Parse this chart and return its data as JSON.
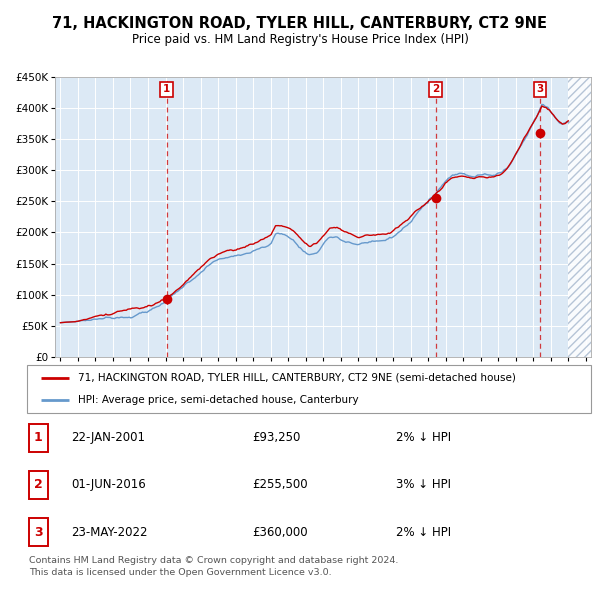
{
  "title": "71, HACKINGTON ROAD, TYLER HILL, CANTERBURY, CT2 9NE",
  "subtitle": "Price paid vs. HM Land Registry's House Price Index (HPI)",
  "title_fontsize": 10.5,
  "subtitle_fontsize": 8.5,
  "bg_color": "#dce9f5",
  "plot_bg_color": "#dce9f5",
  "hatch_color": "#b0c8e0",
  "ylim": [
    0,
    450000
  ],
  "yticks": [
    0,
    50000,
    100000,
    150000,
    200000,
    250000,
    300000,
    350000,
    400000,
    450000
  ],
  "ytick_labels": [
    "£0",
    "£50K",
    "£100K",
    "£150K",
    "£200K",
    "£250K",
    "£300K",
    "£350K",
    "£400K",
    "£450K"
  ],
  "xlim_start": 1994.7,
  "xlim_end": 2025.3,
  "red_line_label": "71, HACKINGTON ROAD, TYLER HILL, CANTERBURY, CT2 9NE (semi-detached house)",
  "blue_line_label": "HPI: Average price, semi-detached house, Canterbury",
  "sale_points": [
    {
      "num": 1,
      "date": "22-JAN-2001",
      "price": 93250,
      "year": 2001.06,
      "pct": "2%",
      "dir": "↓"
    },
    {
      "num": 2,
      "date": "01-JUN-2016",
      "price": 255500,
      "year": 2016.42,
      "pct": "3%",
      "dir": "↓"
    },
    {
      "num": 3,
      "date": "23-MAY-2022",
      "price": 360000,
      "year": 2022.39,
      "pct": "2%",
      "dir": "↓"
    }
  ],
  "footer": "Contains HM Land Registry data © Crown copyright and database right 2024.\nThis data is licensed under the Open Government Licence v3.0.",
  "red_color": "#cc0000",
  "blue_color": "#6699cc",
  "hatch_start": 2024.0,
  "hpi_anchors": [
    [
      1995.0,
      55000
    ],
    [
      1995.5,
      56500
    ],
    [
      1996.0,
      58000
    ],
    [
      1996.5,
      60000
    ],
    [
      1997.0,
      63000
    ],
    [
      1997.5,
      65500
    ],
    [
      1998.0,
      68000
    ],
    [
      1998.5,
      71000
    ],
    [
      1999.0,
      74000
    ],
    [
      1999.5,
      78000
    ],
    [
      2000.0,
      83000
    ],
    [
      2000.5,
      89000
    ],
    [
      2001.0,
      96000
    ],
    [
      2001.5,
      107000
    ],
    [
      2002.0,
      118000
    ],
    [
      2002.5,
      132000
    ],
    [
      2003.0,
      145000
    ],
    [
      2003.5,
      157000
    ],
    [
      2004.0,
      165000
    ],
    [
      2004.5,
      168000
    ],
    [
      2005.0,
      170000
    ],
    [
      2005.5,
      174000
    ],
    [
      2006.0,
      178000
    ],
    [
      2006.5,
      184000
    ],
    [
      2007.0,
      190000
    ],
    [
      2007.3,
      207000
    ],
    [
      2007.8,
      205000
    ],
    [
      2008.3,
      196000
    ],
    [
      2008.8,
      180000
    ],
    [
      2009.2,
      172000
    ],
    [
      2009.6,
      176000
    ],
    [
      2010.0,
      190000
    ],
    [
      2010.4,
      203000
    ],
    [
      2010.8,
      204000
    ],
    [
      2011.2,
      198000
    ],
    [
      2011.6,
      194000
    ],
    [
      2012.0,
      191000
    ],
    [
      2012.4,
      192000
    ],
    [
      2012.8,
      193000
    ],
    [
      2013.2,
      192000
    ],
    [
      2013.6,
      194000
    ],
    [
      2014.0,
      199000
    ],
    [
      2014.4,
      207000
    ],
    [
      2014.8,
      214000
    ],
    [
      2015.0,
      220000
    ],
    [
      2015.4,
      232000
    ],
    [
      2015.8,
      240000
    ],
    [
      2016.2,
      248000
    ],
    [
      2016.6,
      260000
    ],
    [
      2017.0,
      272000
    ],
    [
      2017.4,
      281000
    ],
    [
      2017.8,
      283000
    ],
    [
      2018.2,
      280000
    ],
    [
      2018.6,
      277000
    ],
    [
      2019.0,
      278000
    ],
    [
      2019.4,
      277000
    ],
    [
      2019.8,
      279000
    ],
    [
      2020.2,
      284000
    ],
    [
      2020.6,
      294000
    ],
    [
      2021.0,
      312000
    ],
    [
      2021.4,
      334000
    ],
    [
      2021.8,
      355000
    ],
    [
      2022.2,
      374000
    ],
    [
      2022.5,
      393000
    ],
    [
      2022.8,
      388000
    ],
    [
      2023.1,
      378000
    ],
    [
      2023.4,
      368000
    ],
    [
      2023.7,
      362000
    ],
    [
      2024.0,
      368000
    ]
  ]
}
